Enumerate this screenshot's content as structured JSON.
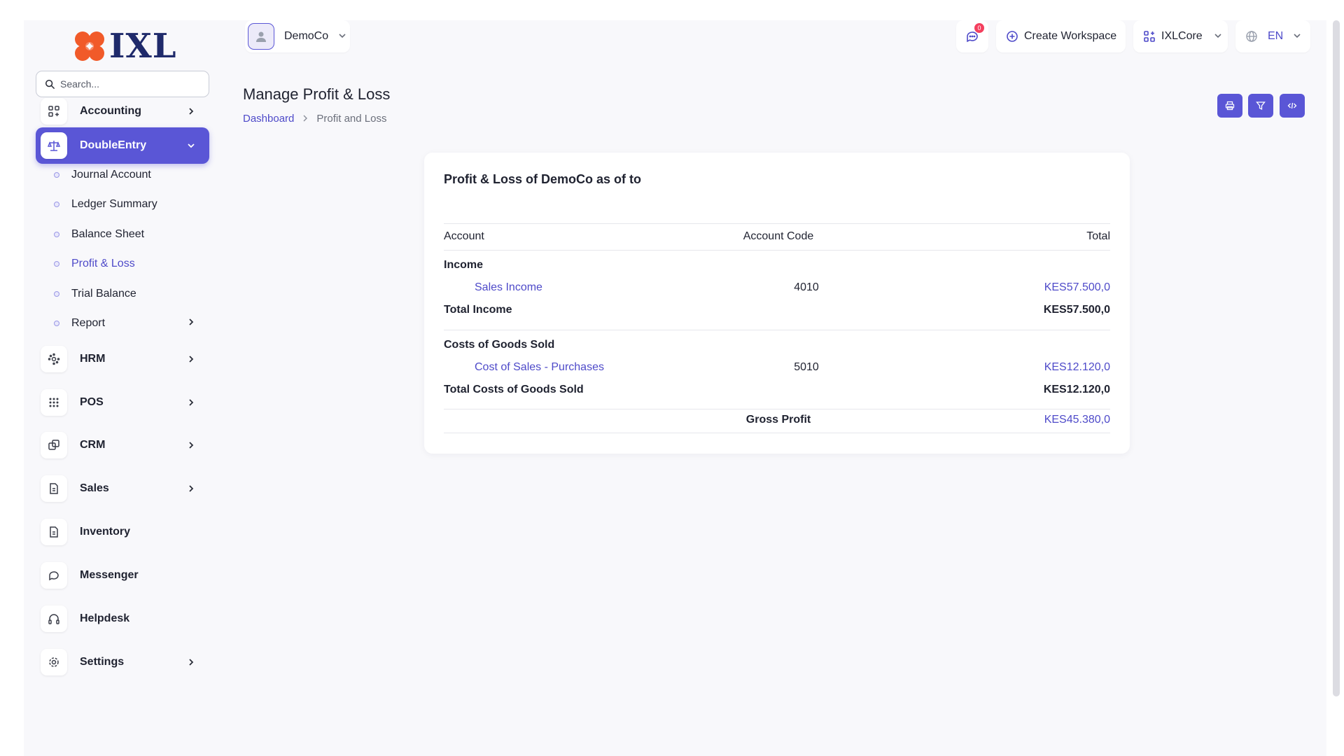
{
  "brand": {
    "logo_text": "IXL",
    "logo_colors": [
      "#f15a29",
      "#1f2a6b"
    ]
  },
  "search": {
    "placeholder": "Search..."
  },
  "sidebar": {
    "items": [
      {
        "label": "Accounting",
        "icon": "grid-plus-icon",
        "expandable": true
      },
      {
        "label": "DoubleEntry",
        "icon": "scale-icon",
        "expandable": true,
        "expanded": true
      },
      {
        "label": "HRM",
        "icon": "hrm-icon",
        "expandable": true
      },
      {
        "label": "POS",
        "icon": "dots-grid-icon",
        "expandable": true
      },
      {
        "label": "CRM",
        "icon": "layers-icon",
        "expandable": true
      },
      {
        "label": "Sales",
        "icon": "document-icon",
        "expandable": true
      },
      {
        "label": "Inventory",
        "icon": "document-icon",
        "expandable": false
      },
      {
        "label": "Messenger",
        "icon": "chat-bubble-icon",
        "expandable": false
      },
      {
        "label": "Helpdesk",
        "icon": "headphones-icon",
        "expandable": false
      },
      {
        "label": "Settings",
        "icon": "gear-icon",
        "expandable": true
      }
    ],
    "subitems": [
      {
        "label": "Journal Account"
      },
      {
        "label": "Ledger Summary"
      },
      {
        "label": "Balance Sheet"
      },
      {
        "label": "Profit & Loss",
        "active": true
      },
      {
        "label": "Trial Balance"
      },
      {
        "label": "Report",
        "expandable": true
      }
    ]
  },
  "header": {
    "company": "DemoCo",
    "notifications_count": "0",
    "create_workspace": "Create Workspace",
    "workspace": "IXLCore",
    "language": "EN"
  },
  "page": {
    "title": "Manage Profit & Loss",
    "breadcrumb": {
      "home": "Dashboard",
      "current": "Profit and Loss"
    },
    "actions": [
      "print-icon",
      "filter-icon",
      "code-icon"
    ]
  },
  "report": {
    "title": "Profit & Loss of DemoCo as of to",
    "columns": {
      "account": "Account",
      "code": "Account Code",
      "total": "Total"
    },
    "income": {
      "heading": "Income",
      "row": {
        "account": "Sales Income",
        "code": "4010",
        "total": "KES57.500,0"
      },
      "total_label": "Total Income",
      "total_value": "KES57.500,0"
    },
    "cogs": {
      "heading": "Costs of Goods Sold",
      "row": {
        "account": "Cost of Sales - Purchases",
        "code": "5010",
        "total": "KES12.120,0"
      },
      "total_label": "Total Costs of Goods Sold",
      "total_value": "KES12.120,0"
    },
    "gross_profit": {
      "label": "Gross Profit",
      "value": "KES45.380,0"
    }
  },
  "colors": {
    "accent": "#5a56d6",
    "link": "#4e4ac9",
    "badge": "#f43f5e"
  }
}
